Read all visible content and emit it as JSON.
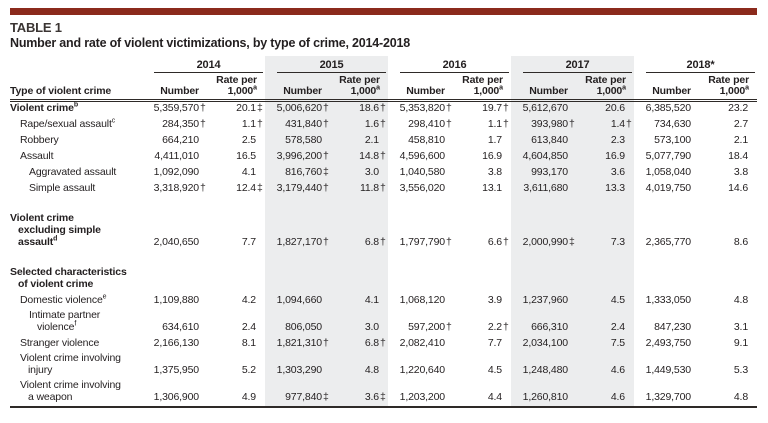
{
  "colors": {
    "accent": "#8b2a1c",
    "shade": "#ecedee",
    "text": "#231f20"
  },
  "header": {
    "table_label": "TABLE 1",
    "title": "Number and rate of violent victimizations, by type of crime, 2014-2018"
  },
  "table": {
    "corner_header": "Type of violent crime",
    "subheaders": {
      "number": "Number",
      "rate_line1": "Rate per",
      "rate_line2": "1,000",
      "rate_sup": "a"
    },
    "years": [
      {
        "label": "2014",
        "shaded": false
      },
      {
        "label": "2015",
        "shaded": true
      },
      {
        "label": "2016",
        "shaded": false
      },
      {
        "label": "2017",
        "shaded": true
      },
      {
        "label": "2018*",
        "shaded": false
      }
    ],
    "rows": [
      {
        "lines": [
          "Violent crime"
        ],
        "sup": "b",
        "bold": true,
        "indent": 0,
        "cells": [
          "5,359,570 †",
          "20.1 ‡",
          "5,006,620 †",
          "18.6 †",
          "5,353,820 †",
          "19.7 †",
          "5,612,670",
          "20.6",
          "6,385,520",
          "23.2"
        ]
      },
      {
        "lines": [
          "Rape/sexual assault"
        ],
        "sup": "c",
        "indent": 1,
        "cells": [
          "284,350 †",
          "1.1 †",
          "431,840 †",
          "1.6 †",
          "298,410 †",
          "1.1 †",
          "393,980 †",
          "1.4 †",
          "734,630",
          "2.7"
        ]
      },
      {
        "lines": [
          "Robbery"
        ],
        "indent": 1,
        "cells": [
          "664,210",
          "2.5",
          "578,580",
          "2.1",
          "458,810",
          "1.7",
          "613,840",
          "2.3",
          "573,100",
          "2.1"
        ]
      },
      {
        "lines": [
          "Assault"
        ],
        "indent": 1,
        "cells": [
          "4,411,010",
          "16.5",
          "3,996,200 †",
          "14.8 †",
          "4,596,600",
          "16.9",
          "4,604,850",
          "16.9",
          "5,077,790",
          "18.4"
        ]
      },
      {
        "lines": [
          "Aggravated assault"
        ],
        "indent": 2,
        "cells": [
          "1,092,090",
          "4.1",
          "816,760 ‡",
          "3.0",
          "1,040,580",
          "3.8",
          "993,170",
          "3.6",
          "1,058,040",
          "3.8"
        ]
      },
      {
        "lines": [
          "Simple assault"
        ],
        "indent": 2,
        "cells": [
          "3,318,920 †",
          "12.4 ‡",
          "3,179,440 †",
          "11.8 †",
          "3,556,020",
          "13.1",
          "3,611,680",
          "13.3",
          "4,019,750",
          "14.6"
        ]
      },
      {
        "spacer": true
      },
      {
        "lines": [
          "Violent crime",
          "excluding simple",
          "assault"
        ],
        "sup": "d",
        "bold": true,
        "indent": 0,
        "cells": [
          "2,040,650",
          "7.7",
          "1,827,170 †",
          "6.8 †",
          "1,797,790 †",
          "6.6 †",
          "2,000,990 ‡",
          "7.3",
          "2,365,770",
          "8.6"
        ]
      },
      {
        "spacer": true
      },
      {
        "lines": [
          "Selected characteristics",
          "of violent crime"
        ],
        "bold": true,
        "indent": 0,
        "section": true,
        "cells": [
          "",
          "",
          "",
          "",
          "",
          "",
          "",
          "",
          "",
          ""
        ]
      },
      {
        "lines": [
          "Domestic violence"
        ],
        "sup": "e",
        "indent": 1,
        "cells": [
          "1,109,880",
          "4.2",
          "1,094,660",
          "4.1",
          "1,068,120",
          "3.9",
          "1,237,960",
          "4.5",
          "1,333,050",
          "4.8"
        ]
      },
      {
        "lines": [
          "Intimate partner",
          "violence"
        ],
        "sup": "f",
        "indent": 2,
        "cells": [
          "634,610",
          "2.4",
          "806,050",
          "3.0",
          "597,200 †",
          "2.2 †",
          "666,310",
          "2.4",
          "847,230",
          "3.1"
        ]
      },
      {
        "lines": [
          "Stranger violence"
        ],
        "indent": 1,
        "cells": [
          "2,166,130",
          "8.1",
          "1,821,310 †",
          "6.8 †",
          "2,082,410",
          "7.7",
          "2,034,100",
          "7.5",
          "2,493,750",
          "9.1"
        ]
      },
      {
        "lines": [
          "Violent crime involving",
          "injury"
        ],
        "indent": 1,
        "cells": [
          "1,375,950",
          "5.2",
          "1,303,290",
          "4.8",
          "1,220,640",
          "4.5",
          "1,248,480",
          "4.6",
          "1,449,530",
          "5.3"
        ]
      },
      {
        "lines": [
          "Violent crime involving",
          "a weapon"
        ],
        "indent": 1,
        "cells": [
          "1,306,900",
          "4.9",
          "977,840 ‡",
          "3.6 ‡",
          "1,203,200",
          "4.4",
          "1,260,810",
          "4.6",
          "1,329,700",
          "4.8"
        ]
      }
    ]
  }
}
